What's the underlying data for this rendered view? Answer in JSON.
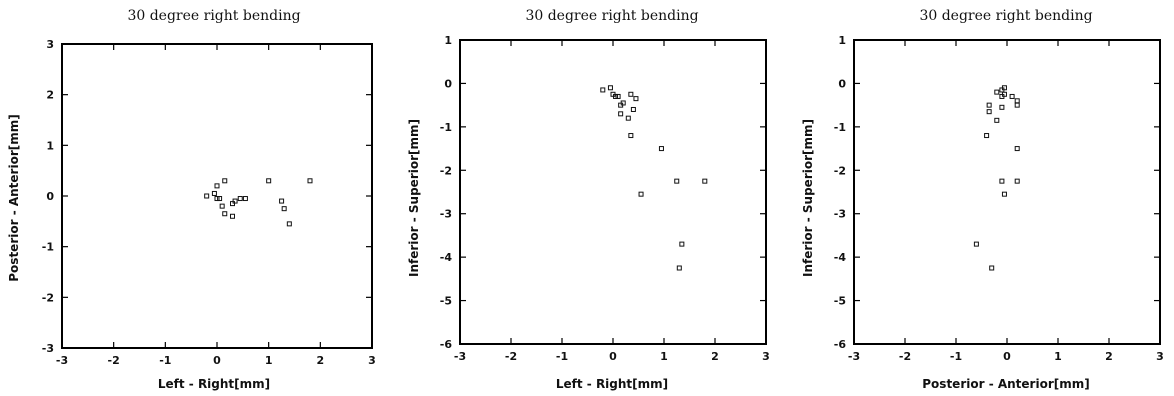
{
  "chart_data": [
    {
      "type": "scatter",
      "title": "30 degree right bending",
      "xlabel": "Left - Right[mm]",
      "ylabel": "Posterior - Anterior[mm]",
      "xlim": [
        -3,
        3
      ],
      "ylim": [
        -3,
        3
      ],
      "xticks": [
        -3,
        -2,
        -1,
        0,
        1,
        2,
        3
      ],
      "yticks": [
        -3,
        -2,
        -1,
        0,
        1,
        2,
        3
      ],
      "grid": false,
      "points": [
        {
          "x": -0.2,
          "y": 0.0
        },
        {
          "x": -0.05,
          "y": 0.05
        },
        {
          "x": 0.0,
          "y": 0.2
        },
        {
          "x": 0.15,
          "y": 0.3
        },
        {
          "x": 0.0,
          "y": -0.05
        },
        {
          "x": 0.05,
          "y": -0.05
        },
        {
          "x": 0.1,
          "y": -0.2
        },
        {
          "x": 0.15,
          "y": -0.35
        },
        {
          "x": 0.3,
          "y": -0.4
        },
        {
          "x": 0.3,
          "y": -0.15
        },
        {
          "x": 0.35,
          "y": -0.1
        },
        {
          "x": 0.45,
          "y": -0.05
        },
        {
          "x": 0.55,
          "y": -0.05
        },
        {
          "x": 1.0,
          "y": 0.3
        },
        {
          "x": 1.25,
          "y": -0.1
        },
        {
          "x": 1.3,
          "y": -0.25
        },
        {
          "x": 1.4,
          "y": -0.55
        },
        {
          "x": 1.8,
          "y": 0.3
        }
      ]
    },
    {
      "type": "scatter",
      "title": "30 degree right bending",
      "xlabel": "Left - Right[mm]",
      "ylabel": "Inferior - Superior[mm]",
      "xlim": [
        -3,
        3
      ],
      "ylim": [
        -6,
        1
      ],
      "xticks": [
        -3,
        -2,
        -1,
        0,
        1,
        2,
        3
      ],
      "yticks": [
        -6,
        -5,
        -4,
        -3,
        -2,
        -1,
        0,
        1
      ],
      "grid": false,
      "points": [
        {
          "x": -0.2,
          "y": -0.15
        },
        {
          "x": -0.05,
          "y": -0.1
        },
        {
          "x": 0.0,
          "y": -0.25
        },
        {
          "x": 0.05,
          "y": -0.3
        },
        {
          "x": 0.1,
          "y": -0.3
        },
        {
          "x": 0.15,
          "y": -0.5
        },
        {
          "x": 0.2,
          "y": -0.45
        },
        {
          "x": 0.15,
          "y": -0.7
        },
        {
          "x": 0.3,
          "y": -0.8
        },
        {
          "x": 0.35,
          "y": -0.25
        },
        {
          "x": 0.45,
          "y": -0.35
        },
        {
          "x": 0.4,
          "y": -0.6
        },
        {
          "x": 0.35,
          "y": -1.2
        },
        {
          "x": 0.95,
          "y": -1.5
        },
        {
          "x": 1.25,
          "y": -2.25
        },
        {
          "x": 1.8,
          "y": -2.25
        },
        {
          "x": 0.55,
          "y": -2.55
        },
        {
          "x": 1.35,
          "y": -3.7
        },
        {
          "x": 1.3,
          "y": -4.25
        }
      ]
    },
    {
      "type": "scatter",
      "title": "30 degree right bending",
      "xlabel": "Posterior - Anterior[mm]",
      "ylabel": "Inferior - Superior[mm]",
      "xlim": [
        -3,
        3
      ],
      "ylim": [
        -6,
        1
      ],
      "xticks": [
        -3,
        -2,
        -1,
        0,
        1,
        2,
        3
      ],
      "yticks": [
        -6,
        -5,
        -4,
        -3,
        -2,
        -1,
        0,
        1
      ],
      "grid": false,
      "points": [
        {
          "x": -0.05,
          "y": -0.1
        },
        {
          "x": -0.1,
          "y": -0.15
        },
        {
          "x": -0.2,
          "y": -0.2
        },
        {
          "x": -0.05,
          "y": -0.25
        },
        {
          "x": -0.1,
          "y": -0.3
        },
        {
          "x": 0.1,
          "y": -0.3
        },
        {
          "x": 0.2,
          "y": -0.4
        },
        {
          "x": 0.2,
          "y": -0.5
        },
        {
          "x": -0.35,
          "y": -0.5
        },
        {
          "x": -0.1,
          "y": -0.55
        },
        {
          "x": -0.35,
          "y": -0.65
        },
        {
          "x": -0.2,
          "y": -0.85
        },
        {
          "x": -0.4,
          "y": -1.2
        },
        {
          "x": 0.2,
          "y": -1.5
        },
        {
          "x": 0.2,
          "y": -2.25
        },
        {
          "x": -0.1,
          "y": -2.25
        },
        {
          "x": -0.05,
          "y": -2.55
        },
        {
          "x": -0.6,
          "y": -3.7
        },
        {
          "x": -0.3,
          "y": -4.25
        }
      ]
    }
  ]
}
